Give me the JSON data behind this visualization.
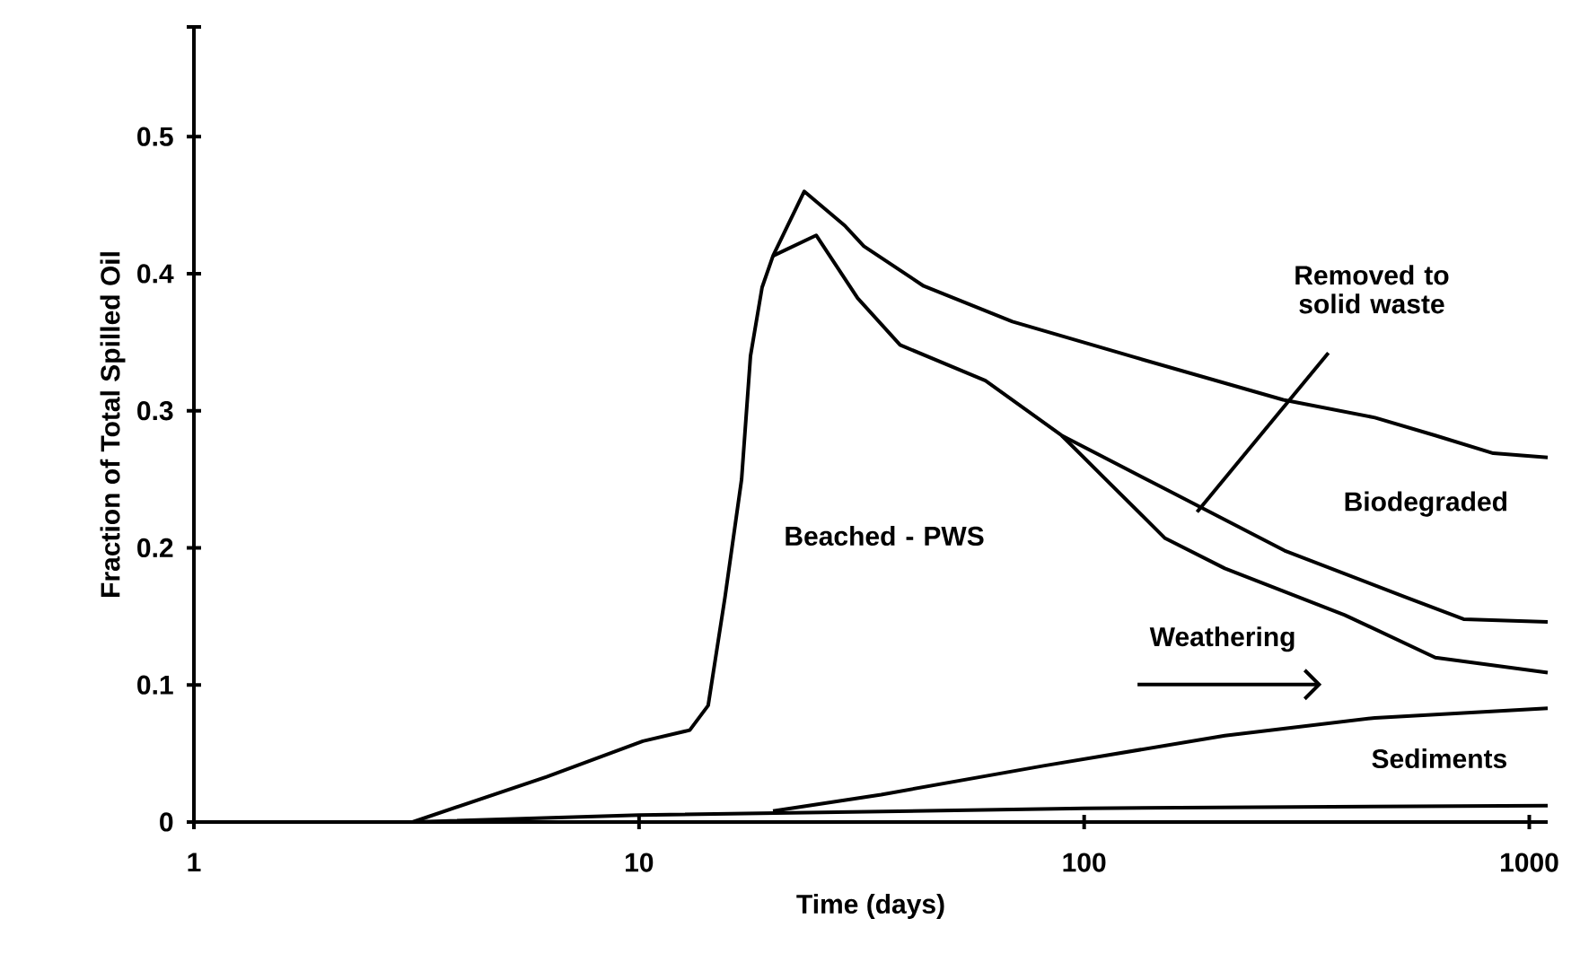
{
  "chart_data": {
    "type": "line",
    "xlabel": "Time (days)",
    "ylabel": "Fraction of Total Spilled Oil",
    "log": "x",
    "line_style": "solid",
    "xlim": [
      1,
      1100
    ],
    "ylim": [
      0,
      0.58
    ],
    "xticks": [
      1,
      10,
      100,
      1000
    ],
    "yticks": [
      0,
      0.1,
      0.2,
      0.3,
      0.4,
      0.5,
      {
        "value": 0.58,
        "label": null
      }
    ],
    "series": [
      {
        "color": "#000000",
        "x": [
          1,
          3.1,
          6.2,
          10.2,
          13,
          14.3,
          15.6,
          17,
          17.8,
          18.9,
          20,
          23.5,
          29,
          32,
          43.6,
          69,
          130,
          280,
          450,
          615,
          830,
          1100
        ],
        "values": [
          0,
          0,
          0.033,
          0.059,
          0.067,
          0.085,
          0.164,
          0.25,
          0.34,
          0.39,
          0.413,
          0.46,
          0.435,
          0.42,
          0.391,
          0.365,
          0.339,
          0.308,
          0.295,
          0.282,
          0.269,
          0.266
        ]
      },
      {
        "color": "#000000",
        "x": [
          20,
          25,
          31,
          38.6,
          60,
          89,
          152,
          282,
          527,
          712,
          1100
        ],
        "values": [
          0.413,
          0.428,
          0.382,
          0.348,
          0.322,
          0.282,
          0.243,
          0.198,
          0.164,
          0.148,
          0.146
        ]
      },
      {
        "color": "#000000",
        "x": [
          89,
          111,
          152,
          207,
          385,
          615,
          1100
        ],
        "values": [
          0.282,
          0.251,
          0.207,
          0.185,
          0.151,
          0.12,
          0.109
        ]
      },
      {
        "color": "#000000",
        "x": [
          20,
          35,
          81,
          207,
          450,
          1100
        ],
        "values": [
          0.008,
          0.02,
          0.041,
          0.063,
          0.076,
          0.083
        ]
      },
      {
        "color": "#000000",
        "x": [
          3.1,
          10,
          100,
          1100
        ],
        "values": [
          0,
          0.005,
          0.01,
          0.012
        ]
      }
    ],
    "annotations": [
      "Beached - PWS",
      "Removed to solid waste",
      "Biodegraded",
      "Weathering",
      "Sediments"
    ]
  }
}
